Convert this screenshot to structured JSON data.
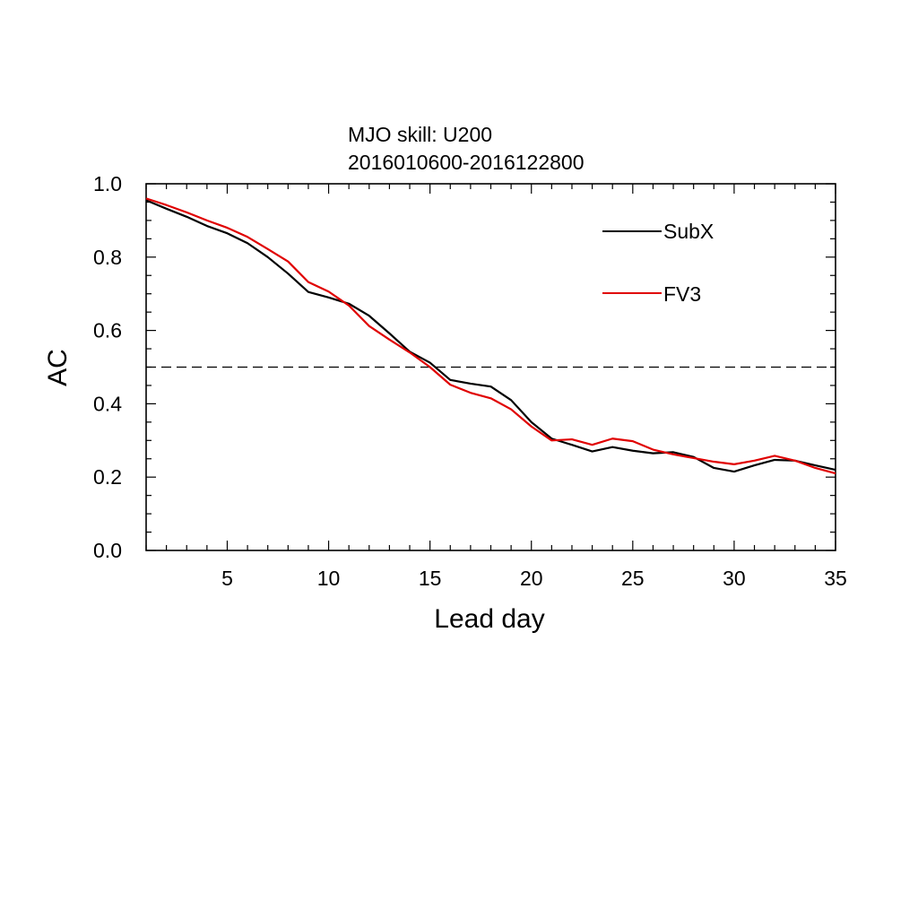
{
  "chart_data": {
    "type": "line",
    "title": "MJO skill: U200",
    "subtitle": "2016010600-2016122800",
    "xlabel": "Lead day",
    "ylabel": "AC",
    "xlim": [
      1,
      35
    ],
    "ylim": [
      0,
      1
    ],
    "x_ticks": [
      5,
      10,
      15,
      20,
      25,
      30,
      35
    ],
    "y_ticks": [
      0.0,
      0.2,
      0.4,
      0.6,
      0.8,
      1.0
    ],
    "y_tick_labels": [
      "0.0",
      "0.2",
      "0.4",
      "0.6",
      "0.8",
      "1.0"
    ],
    "grid": false,
    "legend_position": "top-right",
    "reference_line": {
      "y": 0.5,
      "style": "dashed",
      "color": "#000000"
    },
    "x": [
      1,
      2,
      3,
      4,
      5,
      6,
      7,
      8,
      9,
      10,
      11,
      12,
      13,
      14,
      15,
      16,
      17,
      18,
      19,
      20,
      21,
      22,
      23,
      24,
      25,
      26,
      27,
      28,
      29,
      30,
      31,
      32,
      33,
      34,
      35
    ],
    "series": [
      {
        "name": "SubX",
        "color": "#000000",
        "values": [
          0.955,
          0.932,
          0.91,
          0.885,
          0.865,
          0.838,
          0.8,
          0.755,
          0.705,
          0.69,
          0.673,
          0.64,
          0.592,
          0.542,
          0.512,
          0.465,
          0.455,
          0.447,
          0.41,
          0.35,
          0.305,
          0.288,
          0.27,
          0.282,
          0.272,
          0.265,
          0.268,
          0.255,
          0.225,
          0.215,
          0.232,
          0.247,
          0.245,
          0.232,
          0.22
        ]
      },
      {
        "name": "FV3",
        "color": "#e00000",
        "values": [
          0.96,
          0.942,
          0.922,
          0.9,
          0.88,
          0.855,
          0.822,
          0.788,
          0.732,
          0.706,
          0.668,
          0.612,
          0.575,
          0.54,
          0.5,
          0.452,
          0.43,
          0.415,
          0.385,
          0.338,
          0.3,
          0.303,
          0.288,
          0.305,
          0.298,
          0.275,
          0.262,
          0.252,
          0.242,
          0.235,
          0.245,
          0.258,
          0.245,
          0.225,
          0.21
        ]
      }
    ]
  }
}
